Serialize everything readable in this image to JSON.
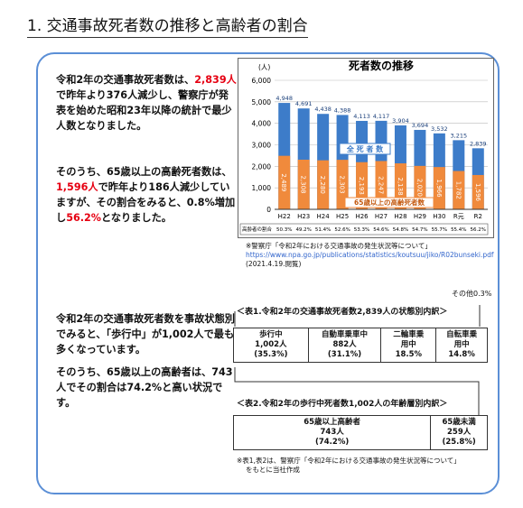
{
  "header": {
    "title": "1. 交通事故死者数の推移と高齢者の割合"
  },
  "paragraphs": [
    [
      {
        "text": "令和2年の交通事故死者数は、"
      },
      {
        "text": "2,839人",
        "color": "#e60012"
      },
      {
        "text": "で昨年より376人減少し、警察庁が発表を始めた昭和23年以降の統計で最少人数となりました。"
      }
    ],
    [
      {
        "text": "そのうち、65歳以上の高齢死者数は、"
      },
      {
        "text": "1,596人",
        "color": "#e60012"
      },
      {
        "text": "で昨年より186人減少していますが、その割合をみると、0.8%増加し"
      },
      {
        "text": "56.2%",
        "color": "#e60012"
      },
      {
        "text": "となりました。"
      }
    ],
    [
      {
        "text": "令和2年の交通事故死者数を事故状態別でみると、「歩行中」が1,002人で最も多くなっています。"
      }
    ],
    [
      {
        "text": "そのうち、65歳以上の高齢者は、743人でその割合は74.2%と高い状況です。"
      }
    ]
  ],
  "chart_data": {
    "type": "bar",
    "title": "死者数の推移",
    "y_unit": "(人)",
    "categories": [
      "H22",
      "H23",
      "H24",
      "H25",
      "H26",
      "H27",
      "H28",
      "H29",
      "H30",
      "R元",
      "R2"
    ],
    "series": [
      {
        "name": "全 死 者 数",
        "color": "#3d7cc9",
        "values": [
          4948,
          4691,
          4438,
          4388,
          4113,
          4117,
          3904,
          3694,
          3532,
          3215,
          2839
        ],
        "value_labels": [
          "4,948",
          "4,691",
          "4,438",
          "4,388",
          "4,113",
          "4,117",
          "3,904",
          "3,694",
          "3,532",
          "3,215",
          "2,839"
        ]
      },
      {
        "name": "65歳以上の高齢死者数",
        "color": "#f08a3c",
        "values": [
          2489,
          2308,
          2280,
          2303,
          2193,
          2247,
          2138,
          2020,
          1966,
          1782,
          1596
        ],
        "value_labels": [
          "2,489",
          "2,308",
          "2,280",
          "2,303",
          "2,193",
          "2,247",
          "2,138",
          "2,020",
          "1,966",
          "1,782",
          "1,596"
        ]
      }
    ],
    "ylim": [
      0,
      6000
    ],
    "yticks": [
      0,
      {
        "value": 1000,
        "label": "1,000"
      },
      {
        "value": 2000,
        "label": "2,000"
      },
      {
        "value": 3000,
        "label": "3,000"
      },
      {
        "value": 4000,
        "label": "4,000"
      },
      {
        "value": 5000,
        "label": "5,000"
      },
      {
        "value": 6000,
        "label": "6,000"
      }
    ],
    "ratio_label": "高齢者の割合",
    "ratios": [
      "50.3%",
      "49.2%",
      "51.4%",
      "52.6%",
      "53.3%",
      "54.6%",
      "54.8%",
      "54.7%",
      "55.7%",
      "55.4%",
      "56.2%"
    ]
  },
  "source": [
    "※警察庁「令和2年における交通事故の発生状況等について」",
    "https://www.npa.go.jp/publications/statistics/koutsuu/jiko/R02bunseki.pdf",
    "(2021.4.19.閲覧)"
  ],
  "table1": {
    "caption": "＜表1.令和2年の交通事故死者数2,839人の状態別内訳＞",
    "other": "その他0.3%",
    "cells": [
      [
        "歩行中",
        "1,002人",
        "(35.3%)"
      ],
      [
        "自動車乗車中",
        "882人",
        "(31.1%)"
      ],
      [
        "二輪車乗用中",
        "18.5%"
      ],
      [
        "自転車乗用中",
        "14.8%"
      ]
    ]
  },
  "table2": {
    "caption": "＜表2.令和2年の歩行中死者数1,002人の年齢層別内訳＞",
    "cells": [
      [
        "65歳以上高齢者",
        "743人",
        "(74.2%)"
      ],
      [
        "65歳未満",
        "259人",
        "(25.8%)"
      ]
    ]
  },
  "footnote": [
    "※表1,表2は、警察庁「令和2年における交通事故の発生状況等について」",
    "をもとに当社作成"
  ]
}
